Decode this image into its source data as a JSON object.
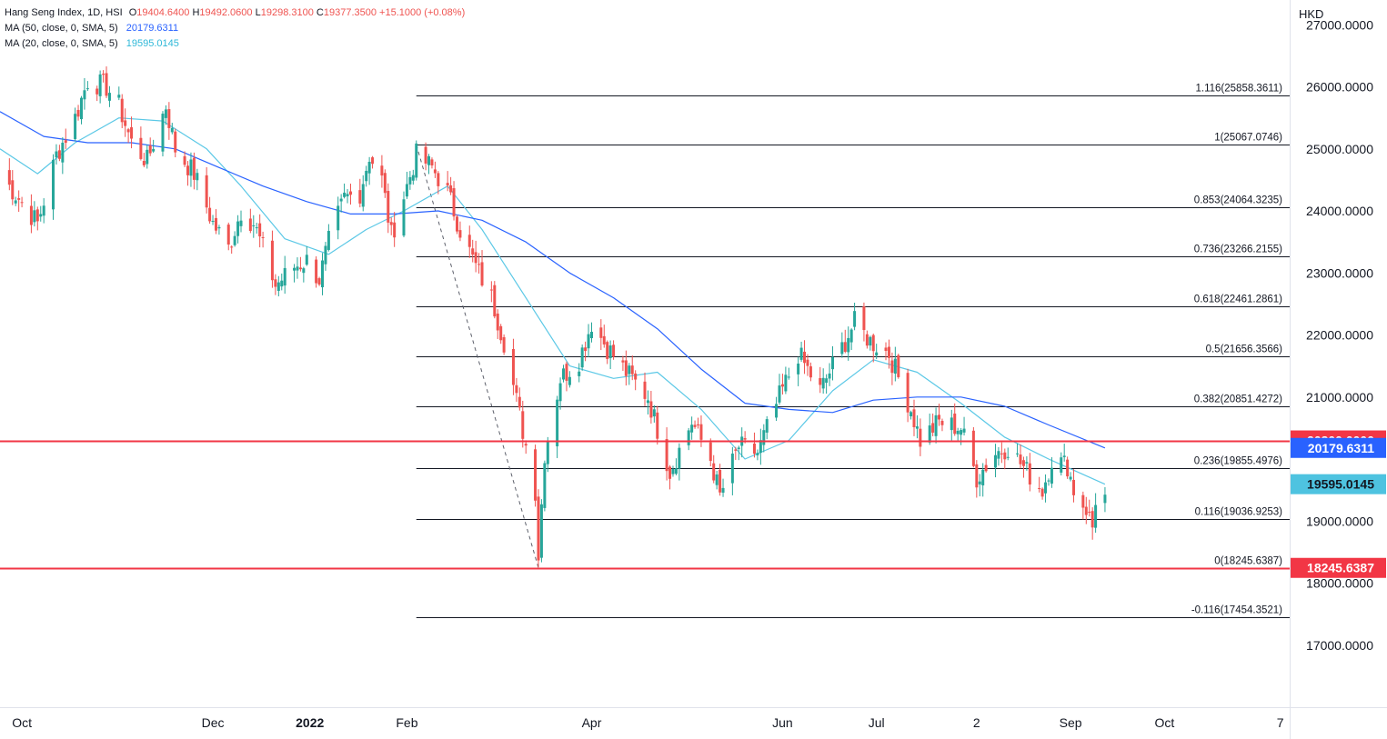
{
  "header": {
    "instrument": "Hang Seng Index, 1D, HSI",
    "ohlc": {
      "o_label": "O",
      "o": "19404.6400",
      "h_label": "H",
      "h": "19492.0600",
      "l_label": "L",
      "l": "19298.3100",
      "c_label": "C",
      "c": "19377.3500",
      "change": "+15.1000 (+0.08%)"
    },
    "ma50_label": "MA (50, close, 0, SMA, 5)",
    "ma50_value": "20179.6311",
    "ma20_label": "MA (20, close, 0, SMA, 5)",
    "ma20_value": "19595.0145",
    "currency": "HKD"
  },
  "colors": {
    "up": "#26a69a",
    "down": "#ef5350",
    "ma50": "#2962ff",
    "ma20": "#5bc8e6",
    "fib_line": "#131722",
    "hline": "#f23645",
    "ma20_badge": "#4ec3e0"
  },
  "chart_data": {
    "type": "candlestick",
    "y_axis": {
      "range": [
        16000,
        27400
      ],
      "ticks": [
        {
          "v": 17000,
          "label": "17000.0000"
        },
        {
          "v": 18000,
          "label": "18000.0000"
        },
        {
          "v": 19000,
          "label": "19000.0000"
        },
        {
          "v": 21000,
          "label": "21000.0000"
        },
        {
          "v": 22000,
          "label": "22000.0000"
        },
        {
          "v": 23000,
          "label": "23000.0000"
        },
        {
          "v": 24000,
          "label": "24000.0000"
        },
        {
          "v": 25000,
          "label": "25000.0000"
        },
        {
          "v": 26000,
          "label": "26000.0000"
        },
        {
          "v": 27000,
          "label": "27000.0000"
        }
      ]
    },
    "x_axis": {
      "start_date": "2021-09-24",
      "end_date": "2022-11-10",
      "ticks": [
        {
          "date": "2021-10-01",
          "label": "Oct",
          "bold": false
        },
        {
          "date": "2021-12-01",
          "label": "Dec",
          "bold": false
        },
        {
          "date": "2022-01-01",
          "label": "2022",
          "bold": true
        },
        {
          "date": "2022-02-01",
          "label": "Feb",
          "bold": false
        },
        {
          "date": "2022-04-01",
          "label": "Apr",
          "bold": false
        },
        {
          "date": "2022-06-01",
          "label": "Jun",
          "bold": false
        },
        {
          "date": "2022-07-01",
          "label": "Jul",
          "bold": false
        },
        {
          "date": "2022-08-02",
          "label": "2",
          "bold": false
        },
        {
          "date": "2022-09-01",
          "label": "Sep",
          "bold": false
        },
        {
          "date": "2022-10-01",
          "label": "Oct",
          "bold": false
        },
        {
          "date": "2022-11-07",
          "label": "7",
          "bold": false
        }
      ]
    },
    "fib": {
      "start_date": "2022-02-04",
      "levels": [
        {
          "ratio": "1.116",
          "value": 25858.3611,
          "label": "1.116(25858.3611)"
        },
        {
          "ratio": "1",
          "value": 25067.0746,
          "label": "1(25067.0746)"
        },
        {
          "ratio": "0.853",
          "value": 24064.3235,
          "label": "0.853(24064.3235)"
        },
        {
          "ratio": "0.736",
          "value": 23266.2155,
          "label": "0.736(23266.2155)"
        },
        {
          "ratio": "0.618",
          "value": 22461.2861,
          "label": "0.618(22461.2861)"
        },
        {
          "ratio": "0.5",
          "value": 21656.3566,
          "label": "0.5(21656.3566)"
        },
        {
          "ratio": "0.382",
          "value": 20851.4272,
          "label": "0.382(20851.4272)"
        },
        {
          "ratio": "0.236",
          "value": 19855.4976,
          "label": "0.236(19855.4976)"
        },
        {
          "ratio": "0.116",
          "value": 19036.9253,
          "label": "0.116(19036.9253)"
        },
        {
          "ratio": "0",
          "value": 18245.6387,
          "label": "0(18245.6387)"
        },
        {
          "ratio": "-0.116",
          "value": 17454.3521,
          "label": "-0.116(17454.3521)"
        }
      ],
      "trend_line": [
        {
          "date": "2022-02-04",
          "value": 25067.0746
        },
        {
          "date": "2022-03-15",
          "value": 18245.6387
        }
      ]
    },
    "horizontal_lines": [
      {
        "value": 20300.0,
        "label": "20300.0000"
      },
      {
        "value": 18245.6387,
        "label": "18245.6387"
      }
    ],
    "price_badges": [
      {
        "value": 20300.0,
        "label": "20300.0000",
        "color": "#f23645",
        "text_color": "#ffffff"
      },
      {
        "value": 20179.6311,
        "label": "20179.6311",
        "color": "#2962ff",
        "text_color": "#ffffff"
      },
      {
        "value": 19595.0145,
        "label": "19595.0145",
        "color": "#4ec3e0",
        "text_color": "#131722"
      },
      {
        "value": 18245.6387,
        "label": "18245.6387",
        "color": "#f23645",
        "text_color": "#ffffff"
      }
    ],
    "close_path": [
      {
        "date": "2021-09-24",
        "c": 24600
      },
      {
        "date": "2021-09-30",
        "c": 24200
      },
      {
        "date": "2021-10-06",
        "c": 23800
      },
      {
        "date": "2021-10-12",
        "c": 24900
      },
      {
        "date": "2021-10-18",
        "c": 25500
      },
      {
        "date": "2021-10-22",
        "c": 26100
      },
      {
        "date": "2021-10-28",
        "c": 26000
      },
      {
        "date": "2021-11-01",
        "c": 25700
      },
      {
        "date": "2021-11-05",
        "c": 25100
      },
      {
        "date": "2021-11-10",
        "c": 24800
      },
      {
        "date": "2021-11-16",
        "c": 25700
      },
      {
        "date": "2021-11-19",
        "c": 25000
      },
      {
        "date": "2021-11-25",
        "c": 24600
      },
      {
        "date": "2021-12-01",
        "c": 23800
      },
      {
        "date": "2021-12-06",
        "c": 23400
      },
      {
        "date": "2021-12-10",
        "c": 24000
      },
      {
        "date": "2021-12-14",
        "c": 23800
      },
      {
        "date": "2021-12-17",
        "c": 23400
      },
      {
        "date": "2021-12-21",
        "c": 22800
      },
      {
        "date": "2021-12-27",
        "c": 23100
      },
      {
        "date": "2021-12-31",
        "c": 23200
      },
      {
        "date": "2022-01-04",
        "c": 22900
      },
      {
        "date": "2022-01-07",
        "c": 23500
      },
      {
        "date": "2022-01-12",
        "c": 24200
      },
      {
        "date": "2022-01-17",
        "c": 24300
      },
      {
        "date": "2022-01-20",
        "c": 24900
      },
      {
        "date": "2022-01-24",
        "c": 24500
      },
      {
        "date": "2022-01-27",
        "c": 23600
      },
      {
        "date": "2022-02-01",
        "c": 24400
      },
      {
        "date": "2022-02-04",
        "c": 24900
      },
      {
        "date": "2022-02-09",
        "c": 24700
      },
      {
        "date": "2022-02-14",
        "c": 24300
      },
      {
        "date": "2022-02-18",
        "c": 23700
      },
      {
        "date": "2022-02-23",
        "c": 23100
      },
      {
        "date": "2022-02-28",
        "c": 22600
      },
      {
        "date": "2022-03-04",
        "c": 21900
      },
      {
        "date": "2022-03-09",
        "c": 20700
      },
      {
        "date": "2022-03-14",
        "c": 19500
      },
      {
        "date": "2022-03-15",
        "c": 18450
      },
      {
        "date": "2022-03-17",
        "c": 20100
      },
      {
        "date": "2022-03-22",
        "c": 21300
      },
      {
        "date": "2022-03-28",
        "c": 21600
      },
      {
        "date": "2022-04-01",
        "c": 22200
      },
      {
        "date": "2022-04-06",
        "c": 21800
      },
      {
        "date": "2022-04-12",
        "c": 21400
      },
      {
        "date": "2022-04-19",
        "c": 21000
      },
      {
        "date": "2022-04-26",
        "c": 19800
      },
      {
        "date": "2022-05-03",
        "c": 20600
      },
      {
        "date": "2022-05-09",
        "c": 20000
      },
      {
        "date": "2022-05-12",
        "c": 19400
      },
      {
        "date": "2022-05-18",
        "c": 20200
      },
      {
        "date": "2022-05-24",
        "c": 20100
      },
      {
        "date": "2022-05-31",
        "c": 21000
      },
      {
        "date": "2022-06-06",
        "c": 21700
      },
      {
        "date": "2022-06-13",
        "c": 21100
      },
      {
        "date": "2022-06-17",
        "c": 21500
      },
      {
        "date": "2022-06-24",
        "c": 22200
      },
      {
        "date": "2022-06-29",
        "c": 21900
      },
      {
        "date": "2022-07-05",
        "c": 21700
      },
      {
        "date": "2022-07-12",
        "c": 20800
      },
      {
        "date": "2022-07-15",
        "c": 20300
      },
      {
        "date": "2022-07-21",
        "c": 20600
      },
      {
        "date": "2022-07-28",
        "c": 20500
      },
      {
        "date": "2022-08-02",
        "c": 19700
      },
      {
        "date": "2022-08-08",
        "c": 20100
      },
      {
        "date": "2022-08-12",
        "c": 20200
      },
      {
        "date": "2022-08-18",
        "c": 19800
      },
      {
        "date": "2022-08-23",
        "c": 19500
      },
      {
        "date": "2022-08-26",
        "c": 20000
      },
      {
        "date": "2022-08-31",
        "c": 19900
      },
      {
        "date": "2022-09-02",
        "c": 19500
      },
      {
        "date": "2022-09-06",
        "c": 19200
      },
      {
        "date": "2022-09-08",
        "c": 18900
      },
      {
        "date": "2022-09-09",
        "c": 19362
      },
      {
        "date": "2022-09-12",
        "c": 19377.35
      }
    ],
    "ma50_path": [
      {
        "date": "2021-09-24",
        "v": 25600
      },
      {
        "date": "2021-10-08",
        "v": 25200
      },
      {
        "date": "2021-10-22",
        "v": 25100
      },
      {
        "date": "2021-11-05",
        "v": 25100
      },
      {
        "date": "2021-11-19",
        "v": 25000
      },
      {
        "date": "2021-12-03",
        "v": 24700
      },
      {
        "date": "2021-12-17",
        "v": 24400
      },
      {
        "date": "2021-12-31",
        "v": 24150
      },
      {
        "date": "2022-01-14",
        "v": 23950
      },
      {
        "date": "2022-01-28",
        "v": 23950
      },
      {
        "date": "2022-02-11",
        "v": 24000
      },
      {
        "date": "2022-02-25",
        "v": 23850
      },
      {
        "date": "2022-03-11",
        "v": 23500
      },
      {
        "date": "2022-03-25",
        "v": 23000
      },
      {
        "date": "2022-04-08",
        "v": 22600
      },
      {
        "date": "2022-04-22",
        "v": 22100
      },
      {
        "date": "2022-05-06",
        "v": 21450
      },
      {
        "date": "2022-05-20",
        "v": 20900
      },
      {
        "date": "2022-06-03",
        "v": 20800
      },
      {
        "date": "2022-06-17",
        "v": 20750
      },
      {
        "date": "2022-06-30",
        "v": 20950
      },
      {
        "date": "2022-07-14",
        "v": 21000
      },
      {
        "date": "2022-07-28",
        "v": 21000
      },
      {
        "date": "2022-08-11",
        "v": 20850
      },
      {
        "date": "2022-08-25",
        "v": 20550
      },
      {
        "date": "2022-09-12",
        "v": 20179.6311
      }
    ],
    "ma20_path": [
      {
        "date": "2021-09-24",
        "v": 25000
      },
      {
        "date": "2021-10-06",
        "v": 24600
      },
      {
        "date": "2021-10-18",
        "v": 25100
      },
      {
        "date": "2021-11-01",
        "v": 25500
      },
      {
        "date": "2021-11-15",
        "v": 25450
      },
      {
        "date": "2021-11-29",
        "v": 25000
      },
      {
        "date": "2021-12-10",
        "v": 24400
      },
      {
        "date": "2021-12-24",
        "v": 23550
      },
      {
        "date": "2022-01-07",
        "v": 23300
      },
      {
        "date": "2022-01-19",
        "v": 23700
      },
      {
        "date": "2022-01-31",
        "v": 24000
      },
      {
        "date": "2022-02-14",
        "v": 24400
      },
      {
        "date": "2022-02-25",
        "v": 23700
      },
      {
        "date": "2022-03-11",
        "v": 22600
      },
      {
        "date": "2022-03-25",
        "v": 21500
      },
      {
        "date": "2022-04-08",
        "v": 21300
      },
      {
        "date": "2022-04-22",
        "v": 21400
      },
      {
        "date": "2022-05-06",
        "v": 20800
      },
      {
        "date": "2022-05-20",
        "v": 20000
      },
      {
        "date": "2022-06-03",
        "v": 20300
      },
      {
        "date": "2022-06-17",
        "v": 21100
      },
      {
        "date": "2022-06-30",
        "v": 21600
      },
      {
        "date": "2022-07-14",
        "v": 21400
      },
      {
        "date": "2022-07-28",
        "v": 20900
      },
      {
        "date": "2022-08-11",
        "v": 20350
      },
      {
        "date": "2022-08-25",
        "v": 20000
      },
      {
        "date": "2022-09-12",
        "v": 19595.0145
      }
    ]
  }
}
